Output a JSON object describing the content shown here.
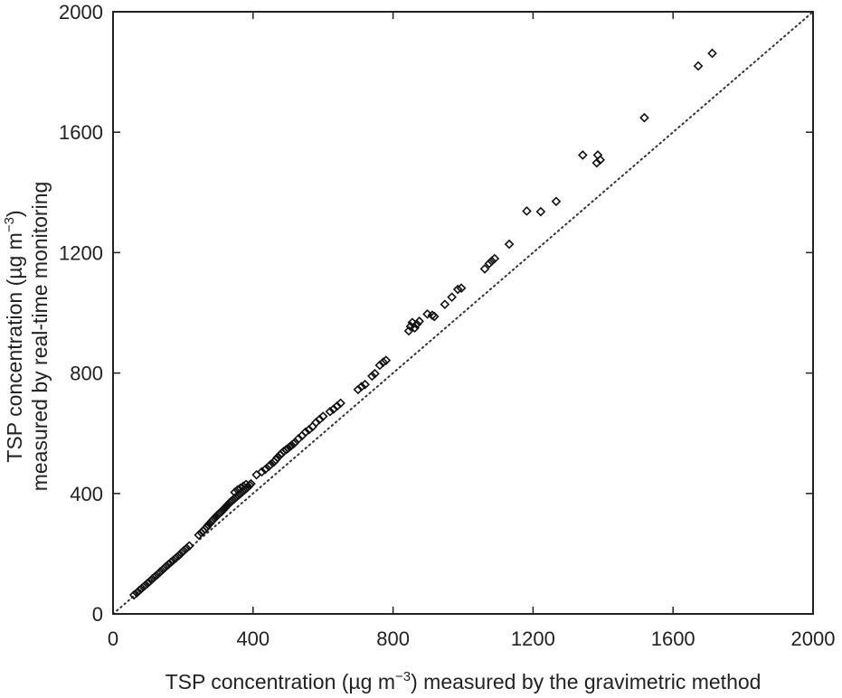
{
  "chart_data": {
    "type": "scatter",
    "xlabel_parts": [
      "TSP concentration (µg m",
      "−3",
      ") measured by the gravimetric method"
    ],
    "ylabel_line1_parts": [
      "TSP concentration (µg m",
      "−3",
      ")"
    ],
    "ylabel_line2": "measured by real-time monitoring",
    "xlim": [
      0,
      2000
    ],
    "ylim": [
      0,
      2000
    ],
    "x_ticks": [
      "0",
      "400",
      "800",
      "1200",
      "1600",
      "2000"
    ],
    "y_ticks": [
      "0",
      "400",
      "800",
      "1200",
      "1600",
      "2000"
    ],
    "grid": false,
    "marker": "diamond-open",
    "reference_line": {
      "style": "dotted",
      "from": [
        0,
        0
      ],
      "to": [
        2000,
        2000
      ]
    },
    "points": [
      [
        60,
        63
      ],
      [
        68,
        70
      ],
      [
        75,
        78
      ],
      [
        82,
        85
      ],
      [
        90,
        93
      ],
      [
        98,
        101
      ],
      [
        105,
        108
      ],
      [
        112,
        116
      ],
      [
        120,
        124
      ],
      [
        128,
        132
      ],
      [
        135,
        140
      ],
      [
        143,
        148
      ],
      [
        150,
        156
      ],
      [
        158,
        164
      ],
      [
        165,
        171
      ],
      [
        172,
        178
      ],
      [
        180,
        186
      ],
      [
        188,
        194
      ],
      [
        195,
        202
      ],
      [
        202,
        210
      ],
      [
        210,
        218
      ],
      [
        218,
        226
      ],
      [
        245,
        262
      ],
      [
        252,
        270
      ],
      [
        258,
        276
      ],
      [
        262,
        282
      ],
      [
        268,
        288
      ],
      [
        272,
        295
      ],
      [
        276,
        300
      ],
      [
        280,
        305
      ],
      [
        285,
        312
      ],
      [
        290,
        318
      ],
      [
        294,
        322
      ],
      [
        298,
        328
      ],
      [
        302,
        332
      ],
      [
        306,
        336
      ],
      [
        310,
        340
      ],
      [
        314,
        345
      ],
      [
        318,
        350
      ],
      [
        322,
        355
      ],
      [
        326,
        360
      ],
      [
        330,
        365
      ],
      [
        334,
        370
      ],
      [
        338,
        374
      ],
      [
        342,
        378
      ],
      [
        346,
        382
      ],
      [
        350,
        386
      ],
      [
        354,
        390
      ],
      [
        358,
        394
      ],
      [
        362,
        398
      ],
      [
        366,
        402
      ],
      [
        370,
        406
      ],
      [
        374,
        410
      ],
      [
        378,
        414
      ],
      [
        382,
        418
      ],
      [
        386,
        422
      ],
      [
        390,
        428
      ],
      [
        394,
        432
      ],
      [
        348,
        404
      ],
      [
        356,
        412
      ],
      [
        364,
        418
      ],
      [
        372,
        424
      ],
      [
        380,
        430
      ],
      [
        410,
        462
      ],
      [
        425,
        472
      ],
      [
        435,
        480
      ],
      [
        445,
        490
      ],
      [
        450,
        496
      ],
      [
        460,
        505
      ],
      [
        465,
        512
      ],
      [
        470,
        520
      ],
      [
        478,
        528
      ],
      [
        482,
        534
      ],
      [
        488,
        540
      ],
      [
        495,
        546
      ],
      [
        500,
        550
      ],
      [
        505,
        555
      ],
      [
        510,
        560
      ],
      [
        516,
        565
      ],
      [
        520,
        570
      ],
      [
        530,
        582
      ],
      [
        540,
        592
      ],
      [
        550,
        604
      ],
      [
        560,
        612
      ],
      [
        570,
        622
      ],
      [
        580,
        636
      ],
      [
        590,
        646
      ],
      [
        600,
        656
      ],
      [
        620,
        672
      ],
      [
        630,
        680
      ],
      [
        640,
        690
      ],
      [
        650,
        700
      ],
      [
        700,
        745
      ],
      [
        710,
        755
      ],
      [
        720,
        762
      ],
      [
        740,
        790
      ],
      [
        748,
        798
      ],
      [
        762,
        826
      ],
      [
        772,
        836
      ],
      [
        780,
        842
      ],
      [
        845,
        940
      ],
      [
        850,
        955
      ],
      [
        855,
        968
      ],
      [
        862,
        950
      ],
      [
        868,
        962
      ],
      [
        875,
        972
      ],
      [
        898,
        996
      ],
      [
        912,
        992
      ],
      [
        918,
        988
      ],
      [
        948,
        1028
      ],
      [
        968,
        1052
      ],
      [
        985,
        1078
      ],
      [
        995,
        1082
      ],
      [
        1062,
        1146
      ],
      [
        1075,
        1164
      ],
      [
        1082,
        1172
      ],
      [
        1090,
        1180
      ],
      [
        1132,
        1228
      ],
      [
        1182,
        1338
      ],
      [
        1222,
        1336
      ],
      [
        1266,
        1370
      ],
      [
        1342,
        1524
      ],
      [
        1382,
        1498
      ],
      [
        1385,
        1524
      ],
      [
        1392,
        1508
      ],
      [
        1518,
        1648
      ],
      [
        1672,
        1820
      ],
      [
        1712,
        1862
      ]
    ]
  }
}
